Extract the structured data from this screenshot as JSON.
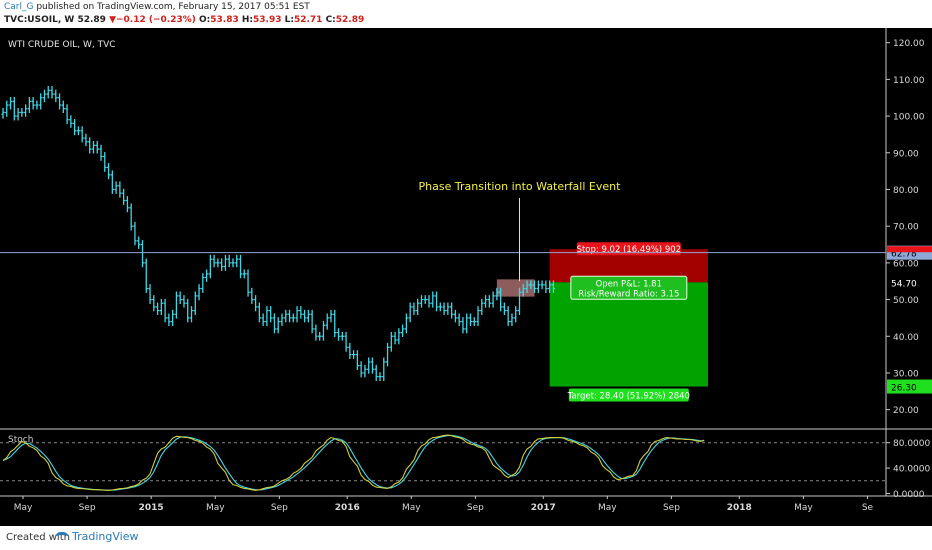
{
  "header": {
    "author": "Carl_G",
    "published": " published on TradingView.com, February 15, 2017 05:51 EST",
    "symbol": "TVC:USOIL, W",
    "last": "52.89",
    "change": "▼−0.12 (−0.23%)",
    "open_label": "O:",
    "open": "53.83",
    "high_label": "H:",
    "high": "53.93",
    "low_label": "L:",
    "low": "52.71",
    "close_label": "C:",
    "close": "52.89"
  },
  "footer": {
    "created_with": "Created with",
    "brand": "TradingView"
  },
  "colors": {
    "background": "#000000",
    "candles": "#3fd7e6",
    "stop_zone": "#a30000",
    "target_zone": "#00a300",
    "horizontal_line": "#8ea9d6",
    "annotation": "#f2f040",
    "stoch_k": "#d2cc3c",
    "stoch_d": "#3fd7e6"
  },
  "chart_data": {
    "type": "candlestick",
    "title": "WTI CRUDE OIL, W, TVC",
    "ylim": [
      15,
      124
    ],
    "yticks": [
      "120.00",
      "110.00",
      "100.00",
      "90.00",
      "80.00",
      "70.00",
      "60.00",
      "50.00",
      "40.00",
      "30.00",
      "20.00"
    ],
    "y_tick_values": [
      120,
      110,
      100,
      90,
      80,
      70,
      60,
      50,
      40,
      30,
      20
    ],
    "x_labels": [
      "May",
      "Sep",
      "2015",
      "May",
      "Sep",
      "2016",
      "May",
      "Sep",
      "2017",
      "May",
      "Sep",
      "2018",
      "May",
      "Se"
    ],
    "x_label_weeks": [
      0,
      17,
      34,
      51,
      68,
      86,
      103,
      120,
      138,
      155,
      172,
      190,
      207,
      224
    ],
    "series": [
      {
        "name": "USOIL",
        "week_start": 0,
        "close": [
          101,
          103,
          104,
          100,
          101,
          101,
          102,
          104,
          103,
          103,
          105,
          106,
          107,
          106,
          105,
          103,
          102,
          99,
          98,
          96,
          96,
          94,
          93,
          91,
          92,
          91,
          89,
          86,
          84,
          80,
          81,
          79,
          77,
          75,
          70,
          66,
          65,
          60,
          53,
          50,
          48,
          47,
          49,
          45,
          44,
          46,
          51,
          50,
          49,
          45,
          47,
          51,
          53,
          56,
          57,
          61,
          60,
          60,
          59,
          61,
          60,
          60,
          61,
          57,
          57,
          52,
          50,
          48,
          45,
          44,
          47,
          45,
          42,
          44,
          45,
          46,
          45,
          45,
          47,
          46,
          45,
          46,
          42,
          40,
          40,
          43,
          45,
          46,
          41,
          40,
          40,
          37,
          35,
          35,
          32,
          30,
          31,
          33,
          31,
          29,
          29,
          33,
          37,
          40,
          39,
          41,
          42,
          45,
          48,
          47,
          49,
          50,
          50,
          49,
          51,
          48,
          48,
          47,
          48,
          46,
          45,
          44,
          42,
          45,
          44,
          44,
          47,
          49,
          50,
          49,
          51,
          52,
          48,
          47,
          44,
          45,
          47,
          52,
          53,
          54,
          54,
          53,
          54,
          54,
          53,
          54,
          53
        ]
      }
    ],
    "horizontal_level": {
      "value": 62.78,
      "label": "62.78"
    },
    "price_labels": [
      {
        "value": 54.7,
        "label": "54.70"
      },
      {
        "value": 26.3,
        "label": "26.30"
      }
    ],
    "annotation": {
      "text": "Phase Transition into Waterfall Event",
      "week": 137,
      "price": 55
    },
    "consolidation_box": {
      "week_start": 131,
      "week_end": 141,
      "top": 55.5,
      "bottom": 50.8
    },
    "position": {
      "week_start": 145,
      "week_end": 187,
      "entry": 54.7,
      "stop": 63.72,
      "target": 26.3,
      "stop_label": "Stop: 9.02 (16.49%) 902",
      "open_pl_label": "Open P&L: 1.81",
      "rr_label": "Risk/Reward Ratio: 3.15",
      "target_label": "Target: 28.40 (51.92%) 2840"
    },
    "indicator": {
      "name": "Stoch",
      "ylim": [
        -4,
        100
      ],
      "yticks": [
        "80.0000",
        "40.0000",
        "0.0000"
      ],
      "y_tick_values": [
        80,
        40,
        0
      ],
      "dashed_levels": [
        80,
        20
      ],
      "k_keys": [
        [
          0,
          52
        ],
        [
          3,
          70
        ],
        [
          5,
          82
        ],
        [
          8,
          72
        ],
        [
          11,
          55
        ],
        [
          14,
          25
        ],
        [
          17,
          12
        ],
        [
          20,
          8
        ],
        [
          24,
          6
        ],
        [
          28,
          5
        ],
        [
          32,
          8
        ],
        [
          35,
          12
        ],
        [
          38,
          24
        ],
        [
          42,
          70
        ],
        [
          46,
          90
        ],
        [
          49,
          88
        ],
        [
          52,
          82
        ],
        [
          55,
          70
        ],
        [
          58,
          40
        ],
        [
          61,
          14
        ],
        [
          64,
          8
        ],
        [
          67,
          5
        ],
        [
          71,
          10
        ],
        [
          75,
          22
        ],
        [
          78,
          35
        ],
        [
          81,
          52
        ],
        [
          84,
          72
        ],
        [
          87,
          88
        ],
        [
          90,
          82
        ],
        [
          93,
          50
        ],
        [
          96,
          22
        ],
        [
          99,
          10
        ],
        [
          102,
          8
        ],
        [
          105,
          18
        ],
        [
          108,
          45
        ],
        [
          111,
          75
        ],
        [
          114,
          88
        ],
        [
          118,
          92
        ],
        [
          121,
          88
        ],
        [
          124,
          78
        ],
        [
          127,
          72
        ],
        [
          131,
          40
        ],
        [
          134,
          25
        ],
        [
          136,
          32
        ],
        [
          139,
          70
        ],
        [
          142,
          86
        ],
        [
          145,
          88
        ],
        [
          148,
          88
        ],
        [
          151,
          82
        ],
        [
          154,
          75
        ],
        [
          157,
          62
        ],
        [
          160,
          38
        ],
        [
          163,
          22
        ],
        [
          167,
          28
        ],
        [
          170,
          60
        ],
        [
          173,
          82
        ],
        [
          176,
          88
        ],
        [
          179,
          86
        ],
        [
          182,
          85
        ],
        [
          185,
          82
        ],
        [
          186,
          84
        ]
      ]
    }
  }
}
